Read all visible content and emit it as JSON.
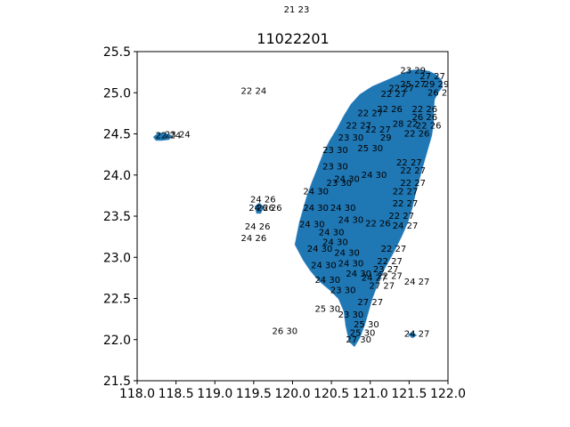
{
  "title": "11022201",
  "top_label": "21 23",
  "x_ticks": [
    "118.0",
    "118.5",
    "119.0",
    "119.5",
    "120.0",
    "120.5",
    "121.0",
    "121.5",
    "122.0"
  ],
  "y_ticks": [
    "25.5",
    "25.0",
    "24.5",
    "24.0",
    "23.5",
    "23.0",
    "22.5",
    "22.0",
    "21.5"
  ],
  "colors": {
    "land": "#1f77b4",
    "axis": "#000000"
  },
  "map_labels": [
    {
      "lon": 119.5,
      "lat": 25.02,
      "text": "22 24"
    },
    {
      "lon": 118.4,
      "lat": 24.48,
      "text": "22 24"
    },
    {
      "lon": 118.52,
      "lat": 24.49,
      "text": "23 24"
    },
    {
      "lon": 119.62,
      "lat": 23.7,
      "text": "24 26"
    },
    {
      "lon": 119.6,
      "lat": 23.6,
      "text": "24 26"
    },
    {
      "lon": 119.7,
      "lat": 23.6,
      "text": "26 26"
    },
    {
      "lon": 119.55,
      "lat": 23.37,
      "text": "24 26"
    },
    {
      "lon": 119.5,
      "lat": 23.23,
      "text": "24 26"
    },
    {
      "lon": 119.9,
      "lat": 22.1,
      "text": "26 30"
    },
    {
      "lon": 121.6,
      "lat": 22.07,
      "text": "24 27"
    },
    {
      "lon": 121.55,
      "lat": 25.27,
      "text": "23 29"
    },
    {
      "lon": 121.8,
      "lat": 25.2,
      "text": "27 27"
    },
    {
      "lon": 121.85,
      "lat": 25.1,
      "text": "29 29"
    },
    {
      "lon": 121.9,
      "lat": 25.0,
      "text": "26 26"
    },
    {
      "lon": 121.3,
      "lat": 24.98,
      "text": "22 27"
    },
    {
      "lon": 121.25,
      "lat": 24.8,
      "text": "22 26"
    },
    {
      "lon": 121.7,
      "lat": 24.8,
      "text": "22 26"
    },
    {
      "lon": 121.7,
      "lat": 24.7,
      "text": "26 26"
    },
    {
      "lon": 121.75,
      "lat": 24.6,
      "text": "22 26"
    },
    {
      "lon": 121.6,
      "lat": 24.5,
      "text": "22 26"
    },
    {
      "lon": 121.2,
      "lat": 24.45,
      "text": "29"
    },
    {
      "lon": 121.0,
      "lat": 24.32,
      "text": "25 30"
    },
    {
      "lon": 121.5,
      "lat": 24.15,
      "text": "22 27"
    },
    {
      "lon": 121.55,
      "lat": 24.05,
      "text": "22 27"
    },
    {
      "lon": 121.55,
      "lat": 23.9,
      "text": "22 27"
    },
    {
      "lon": 121.45,
      "lat": 23.8,
      "text": "22 27"
    },
    {
      "lon": 121.45,
      "lat": 23.65,
      "text": "22 27"
    },
    {
      "lon": 121.4,
      "lat": 23.5,
      "text": "22 27"
    },
    {
      "lon": 121.1,
      "lat": 23.41,
      "text": "22 26"
    },
    {
      "lon": 121.45,
      "lat": 23.38,
      "text": "24 27"
    },
    {
      "lon": 121.3,
      "lat": 23.1,
      "text": "22 27"
    },
    {
      "lon": 121.25,
      "lat": 22.95,
      "text": "22 27"
    },
    {
      "lon": 121.2,
      "lat": 22.85,
      "text": "23 27"
    },
    {
      "lon": 121.05,
      "lat": 22.75,
      "text": "24 27"
    },
    {
      "lon": 121.25,
      "lat": 22.77,
      "text": "22 27"
    },
    {
      "lon": 121.15,
      "lat": 22.65,
      "text": "27 27"
    },
    {
      "lon": 121.6,
      "lat": 22.7,
      "text": "24 27"
    },
    {
      "lon": 121.0,
      "lat": 22.45,
      "text": "27 27"
    },
    {
      "lon": 120.45,
      "lat": 22.37,
      "text": "25 30"
    },
    {
      "lon": 120.75,
      "lat": 22.3,
      "text": "23 30"
    },
    {
      "lon": 120.95,
      "lat": 22.18,
      "text": "25 30"
    },
    {
      "lon": 120.9,
      "lat": 22.08,
      "text": "25 30"
    },
    {
      "lon": 120.85,
      "lat": 22.0,
      "text": "27 30"
    },
    {
      "lon": 120.7,
      "lat": 23.95,
      "text": "24 30"
    },
    {
      "lon": 121.05,
      "lat": 24.0,
      "text": "24 30"
    },
    {
      "lon": 120.65,
      "lat": 23.6,
      "text": "24 30"
    },
    {
      "lon": 120.75,
      "lat": 23.45,
      "text": "24 30"
    },
    {
      "lon": 120.5,
      "lat": 23.3,
      "text": "24 30"
    },
    {
      "lon": 120.55,
      "lat": 23.18,
      "text": "24 30"
    },
    {
      "lon": 120.7,
      "lat": 23.05,
      "text": "24 30"
    },
    {
      "lon": 120.75,
      "lat": 22.92,
      "text": "24 30"
    },
    {
      "lon": 120.85,
      "lat": 22.8,
      "text": "24 30"
    },
    {
      "lon": 120.65,
      "lat": 22.6,
      "text": "23 30"
    },
    {
      "lon": 120.6,
      "lat": 23.9,
      "text": "23 30"
    },
    {
      "lon": 120.55,
      "lat": 24.1,
      "text": "23 30"
    },
    {
      "lon": 120.85,
      "lat": 24.6,
      "text": "22 27"
    },
    {
      "lon": 121.0,
      "lat": 24.75,
      "text": "22 27"
    },
    {
      "lon": 121.4,
      "lat": 25.05,
      "text": "22 27"
    },
    {
      "lon": 121.55,
      "lat": 25.1,
      "text": "25 27"
    },
    {
      "lon": 120.3,
      "lat": 23.8,
      "text": "24 30"
    },
    {
      "lon": 120.3,
      "lat": 23.6,
      "text": "24 30"
    },
    {
      "lon": 120.25,
      "lat": 23.4,
      "text": "24 30"
    },
    {
      "lon": 120.35,
      "lat": 23.1,
      "text": "24 30"
    },
    {
      "lon": 120.4,
      "lat": 22.9,
      "text": "24 30"
    },
    {
      "lon": 120.45,
      "lat": 22.72,
      "text": "24 30"
    },
    {
      "lon": 120.55,
      "lat": 24.3,
      "text": "23 30"
    },
    {
      "lon": 120.75,
      "lat": 24.45,
      "text": "23 30"
    },
    {
      "lon": 121.1,
      "lat": 24.55,
      "text": "22 27"
    },
    {
      "lon": 121.45,
      "lat": 24.62,
      "text": "28 22"
    }
  ]
}
